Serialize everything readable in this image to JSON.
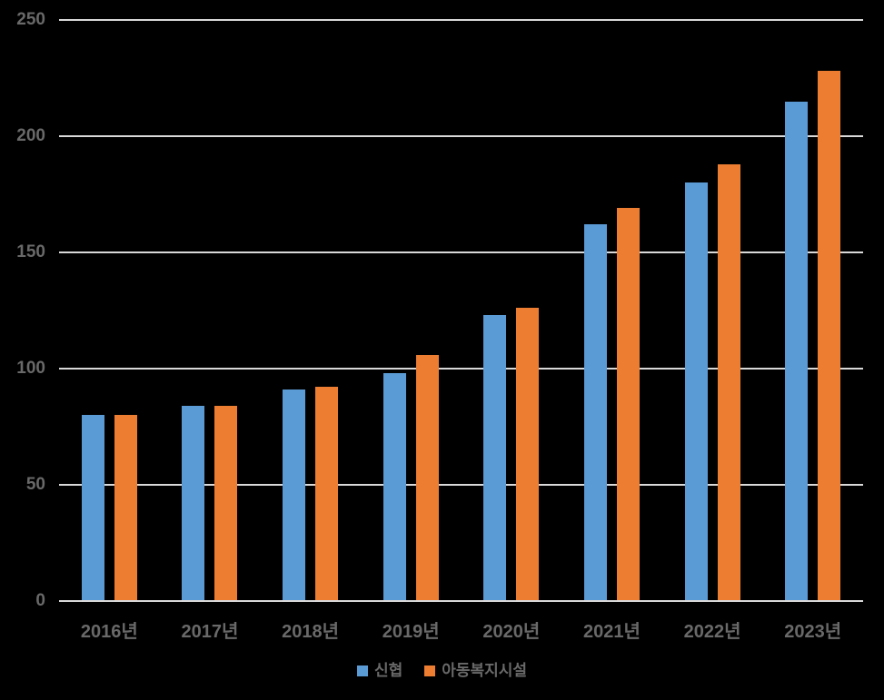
{
  "chart_data": {
    "type": "bar",
    "categories": [
      "2016년",
      "2017년",
      "2018년",
      "2019년",
      "2020년",
      "2021년",
      "2022년",
      "2023년"
    ],
    "series": [
      {
        "name": "신협",
        "color": "#5B9BD5",
        "values": [
          80,
          84,
          91,
          98,
          123,
          162,
          180,
          215
        ]
      },
      {
        "name": "아동복지시설",
        "color": "#ED7D31",
        "values": [
          80,
          84,
          92,
          106,
          126,
          169,
          188,
          228
        ]
      }
    ],
    "ylim": [
      0,
      250
    ],
    "yticks": [
      0,
      50,
      100,
      150,
      200,
      250
    ],
    "grid": true,
    "legend_position": "bottom",
    "background_color": "#000000",
    "gridline_color": "#d9d9d9",
    "axis_line_color": "#d9d9d9",
    "label_color": "#696969"
  }
}
